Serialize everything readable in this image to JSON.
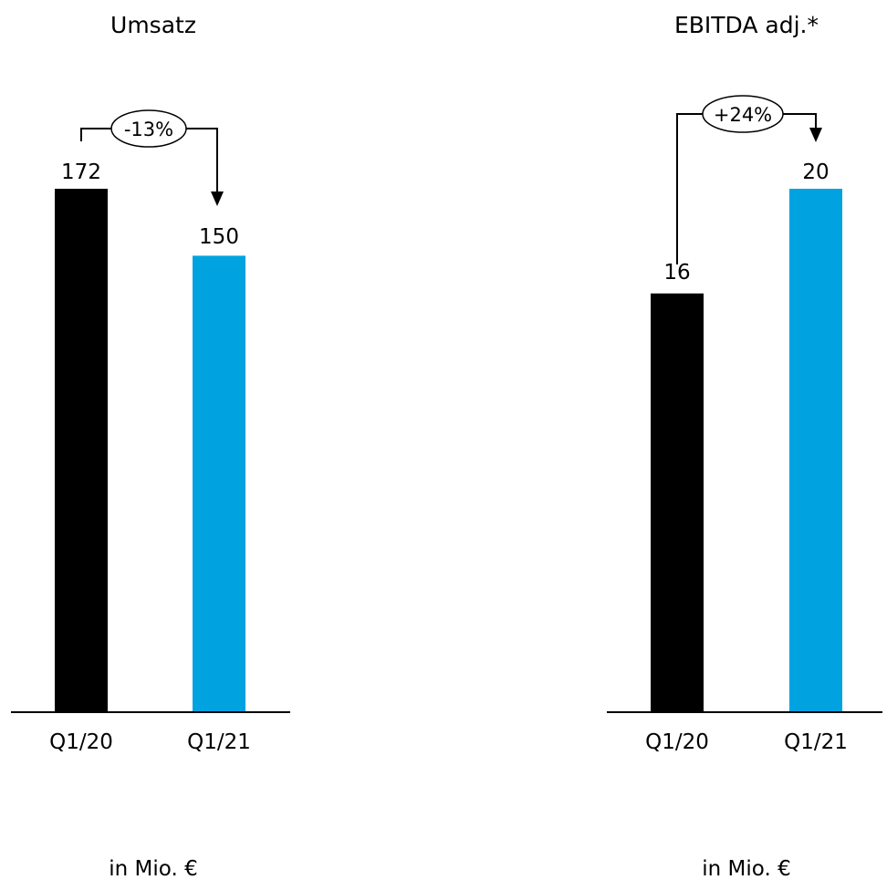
{
  "chart_data": [
    {
      "type": "bar",
      "title": "Umsatz",
      "categories": [
        "Q1/20",
        "Q1/21"
      ],
      "values": [
        172,
        150
      ],
      "value_labels": [
        "172",
        "150"
      ],
      "colors": [
        "#000000",
        "#00a3e0"
      ],
      "ylim": [
        0,
        172
      ],
      "change_label": "-13%",
      "unit_label": "in Mio. €"
    },
    {
      "type": "bar",
      "title": "EBITDA adj.*",
      "categories": [
        "Q1/20",
        "Q1/21"
      ],
      "values": [
        16,
        20
      ],
      "value_labels": [
        "16",
        "20"
      ],
      "colors": [
        "#000000",
        "#00a3e0"
      ],
      "ylim": [
        0,
        20
      ],
      "change_label": "+24%",
      "unit_label": "in Mio. €"
    }
  ]
}
